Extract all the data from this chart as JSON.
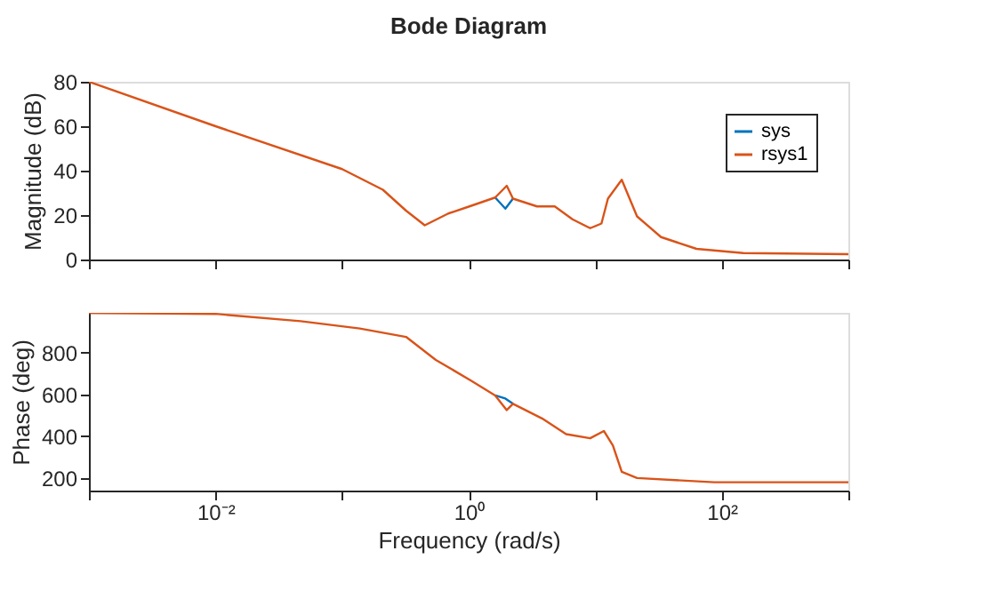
{
  "chart_data": [
    {
      "type": "line",
      "title": "Bode Diagram",
      "ylabel": "Magnitude (dB)",
      "xlim": [
        0.001,
        1000
      ],
      "xticks": [
        {
          "value": 0.001,
          "label": null
        },
        {
          "value": 0.01,
          "label": null
        },
        {
          "value": 0.1,
          "label": null
        },
        {
          "value": 1,
          "label": null
        },
        {
          "value": 10,
          "label": null
        },
        {
          "value": 100,
          "label": null
        },
        {
          "value": 1000,
          "label": null
        }
      ],
      "ylim": [
        0,
        80
      ],
      "yticks": [
        0,
        20,
        40,
        60,
        80
      ],
      "log": "x",
      "tick_labels": "y",
      "legend": "top right",
      "grid": false,
      "line_style": "solid",
      "marker": "none",
      "series": [
        {
          "name": "sys",
          "color": "#0072bd",
          "x": [
            1.62,
            1.95,
            2.24
          ],
          "values": [
            27.9,
            22.9,
            27.4
          ]
        },
        {
          "name": "rsys1",
          "color": "#d95319",
          "x": [
            0.001,
            0.01,
            0.1,
            0.21,
            0.32,
            0.45,
            0.69,
            1.05,
            1.62,
            2.0,
            2.24,
            3.47,
            4.79,
            6.61,
            9.12,
            11.2,
            12.6,
            16.2,
            21.4,
            33.1,
            63.1,
            148,
            1000
          ],
          "values": [
            80,
            60,
            40.7,
            31.4,
            22,
            15.4,
            20.7,
            24.2,
            27.9,
            33.2,
            27.4,
            23.9,
            23.9,
            18.1,
            14.1,
            16.2,
            27.4,
            35.9,
            19.4,
            10.1,
            4.8,
            2.9,
            2.4
          ]
        }
      ]
    },
    {
      "type": "line",
      "xlabel": "Frequency (rad/s)",
      "ylabel": "Phase (deg)",
      "xlim": [
        0.001,
        1000
      ],
      "xticks": [
        {
          "value": 0.001,
          "label": null
        },
        {
          "value": 0.01,
          "label": "10⁻²"
        },
        {
          "value": 0.1,
          "label": null
        },
        {
          "value": 1,
          "label": "10⁰"
        },
        {
          "value": 10,
          "label": null
        },
        {
          "value": 100,
          "label": "10²"
        },
        {
          "value": 1000,
          "label": null
        }
      ],
      "ylim": [
        140,
        990
      ],
      "yticks": [
        200,
        400,
        600,
        800
      ],
      "log": "x",
      "legend": false,
      "grid": false,
      "line_style": "solid",
      "marker": "none",
      "series": [
        {
          "color": "#0072bd",
          "x": [
            1.62,
            1.95,
            2.24
          ],
          "values": [
            595,
            580,
            555
          ]
        },
        {
          "color": "#d95319",
          "x": [
            0.001,
            0.01,
            0.047,
            0.138,
            0.32,
            0.55,
            1.05,
            1.62,
            2.0,
            2.24,
            3.8,
            5.89,
            9.12,
            11.7,
            13.8,
            16.2,
            21.4,
            87.1,
            1000
          ],
          "values": [
            990,
            985,
            950,
            915,
            875,
            765,
            665,
            595,
            525,
            555,
            485,
            410,
            390,
            425,
            355,
            230,
            200,
            180,
            180
          ]
        }
      ]
    }
  ]
}
